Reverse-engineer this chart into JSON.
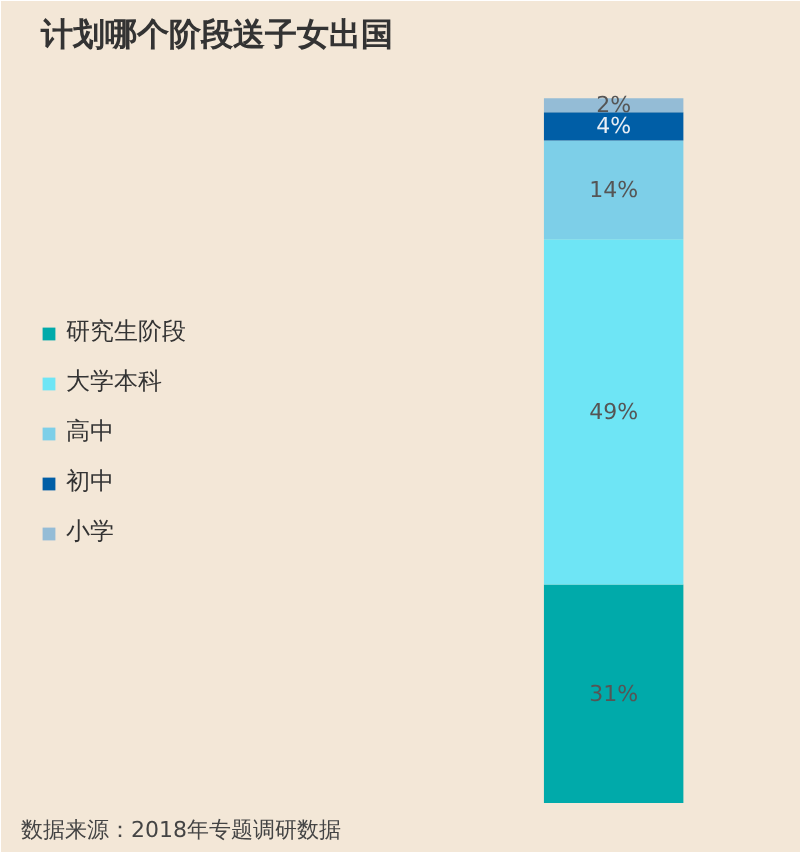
{
  "chart_data": {
    "type": "bar",
    "stacked": true,
    "title": "计划哪个阶段送子女出国",
    "categories": [
      null
    ],
    "series": [
      {
        "name": "研究生阶段",
        "color": "#00aaaa",
        "values": [
          31
        ],
        "value_labels": [
          "31%"
        ]
      },
      {
        "name": "大学本科",
        "color": "#6ee5f5",
        "values": [
          49
        ],
        "value_labels": [
          "49%"
        ]
      },
      {
        "name": "高中",
        "color": "#7dcfe8",
        "values": [
          14
        ],
        "value_labels": [
          "14%"
        ]
      },
      {
        "name": "初中",
        "color": "#005ea6",
        "values": [
          4
        ],
        "value_labels": [
          "4%"
        ]
      },
      {
        "name": "小学",
        "color": "#94bcd6",
        "values": [
          2
        ],
        "value_labels": [
          "2%"
        ]
      }
    ],
    "legend": "left",
    "annotations": [
      "数据来源：2018年专题调研数据"
    ]
  }
}
